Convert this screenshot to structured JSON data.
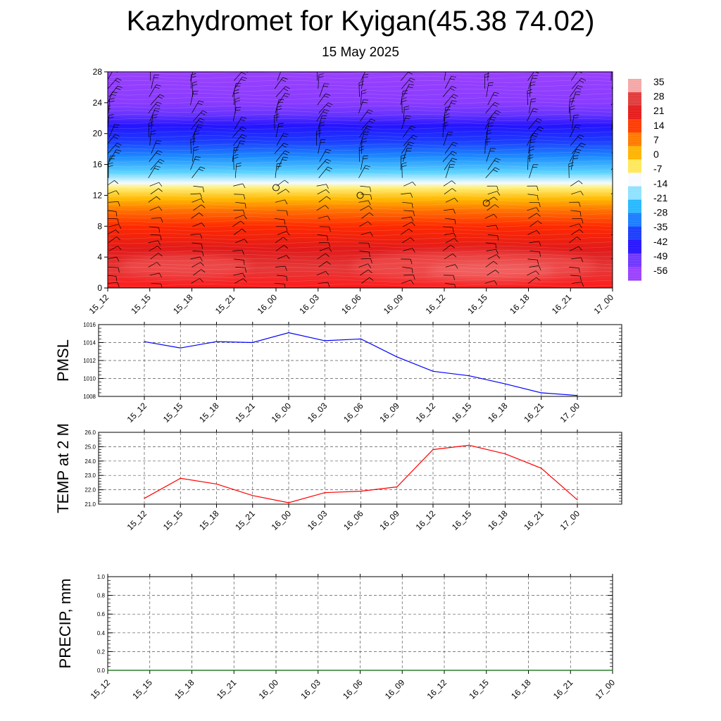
{
  "header": {
    "title": "Kazhydromet for Kyigan(45.38 74.02)",
    "date": "15 May 2025"
  },
  "chart_data": [
    {
      "type": "heatmap",
      "title": "Kazhydromet for Kyigan(45.38 74.02)",
      "subtitle": "15 May 2025",
      "x_ticks": [
        "15_12",
        "15_15",
        "15_18",
        "15_21",
        "16_00",
        "16_03",
        "16_06",
        "16_09",
        "16_12",
        "16_15",
        "16_18",
        "16_21",
        "17_00"
      ],
      "y_ticks": [
        0,
        4,
        8,
        12,
        16,
        20,
        24,
        28
      ],
      "ylim": [
        0,
        28
      ],
      "colorbar": {
        "labels": [
          "35",
          "28",
          "21",
          "14",
          "7",
          "0",
          "-7",
          "-14",
          "-21",
          "-28",
          "-35",
          "-42",
          "-49",
          "-56"
        ],
        "range": [
          -60,
          38
        ]
      },
      "color_stops": [
        {
          "v": 0,
          "c": "#ff1a1a"
        },
        {
          "v": 2.5,
          "c": "#e43a3a"
        },
        {
          "v": 5,
          "c": "#e21a1a"
        },
        {
          "v": 8,
          "c": "#ff2a00"
        },
        {
          "v": 10,
          "c": "#ff7000"
        },
        {
          "v": 11.5,
          "c": "#ffb800"
        },
        {
          "v": 13,
          "c": "#fff07a"
        },
        {
          "v": 13.6,
          "c": "#f4fbff"
        },
        {
          "v": 15,
          "c": "#5ad2ff"
        },
        {
          "v": 17,
          "c": "#1c8cff"
        },
        {
          "v": 19,
          "c": "#1c3cff"
        },
        {
          "v": 21,
          "c": "#2414ff"
        },
        {
          "v": 22.5,
          "c": "#6a34ff"
        },
        {
          "v": 24,
          "c": "#8a3cff"
        },
        {
          "v": 28,
          "c": "#9a40ff"
        }
      ],
      "colorbar_colors": [
        "#f6a6a6",
        "#e23b3b",
        "#e61c1c",
        "#ff3a00",
        "#ff7a00",
        "#ffb400",
        "#ffe85a",
        "#f7fbff",
        "#8ee2ff",
        "#27b8ff",
        "#1b7dff",
        "#1a3dff",
        "#2714ff",
        "#6f36ff",
        "#9a40ff"
      ],
      "warm_patches": [
        {
          "x0": 0.3,
          "x1": 3.4,
          "y0": 1.4,
          "y1": 4.2,
          "c": "#f05050"
        },
        {
          "x0": 5.8,
          "x1": 11.6,
          "y0": 0.8,
          "y1": 4.8,
          "c": "#f05050"
        },
        {
          "x0": 7.6,
          "x1": 10.6,
          "y0": 1.3,
          "y1": 3.2,
          "c": "#f47070"
        }
      ],
      "circles": [
        {
          "x": 4,
          "y": 13.0
        },
        {
          "x": 6,
          "y": 12.0
        },
        {
          "x": 9,
          "y": 11.0
        }
      ]
    },
    {
      "type": "line",
      "ylabel": "PMSL",
      "x": [
        "15_12",
        "15_15",
        "15_18",
        "15_21",
        "16_00",
        "16_03",
        "16_06",
        "16_09",
        "16_12",
        "16_15",
        "16_18",
        "16_21",
        "17_00"
      ],
      "values": [
        1014.1,
        1013.4,
        1014.1,
        1014.0,
        1015.1,
        1014.2,
        1014.4,
        1012.4,
        1010.8,
        1010.3,
        1009.4,
        1008.4,
        1008.1
      ],
      "ylim": [
        1008,
        1016
      ],
      "y_ticks": [
        "1008",
        "1010",
        "1012",
        "1014",
        "1016"
      ],
      "color": "#0000ff"
    },
    {
      "type": "line",
      "ylabel": "TEMP at 2 M",
      "x": [
        "15_12",
        "15_15",
        "15_18",
        "15_21",
        "16_00",
        "16_03",
        "16_06",
        "16_09",
        "16_12",
        "16_15",
        "16_18",
        "16_21",
        "17_00"
      ],
      "values": [
        21.4,
        22.8,
        22.4,
        21.6,
        21.1,
        21.8,
        21.9,
        22.2,
        24.8,
        25.1,
        24.5,
        23.5,
        21.3
      ],
      "ylim": [
        21,
        26
      ],
      "y_ticks": [
        "21.0",
        "22.0",
        "23.0",
        "24.0",
        "25.0",
        "26.0"
      ],
      "color": "#ff0000"
    },
    {
      "type": "line",
      "ylabel": "PRECIP, mm",
      "x": [
        "15_12",
        "15_15",
        "15_18",
        "15_21",
        "16_00",
        "16_03",
        "16_06",
        "16_09",
        "16_12",
        "16_15",
        "16_18",
        "16_21",
        "17_00"
      ],
      "values": [
        0,
        0,
        0,
        0,
        0,
        0,
        0,
        0,
        0,
        0,
        0,
        0,
        0
      ],
      "ylim": [
        0,
        1
      ],
      "y_ticks": [
        "0.0",
        "0.2",
        "0.4",
        "0.6",
        "0.8",
        "1.0"
      ],
      "color": "#006400"
    }
  ]
}
